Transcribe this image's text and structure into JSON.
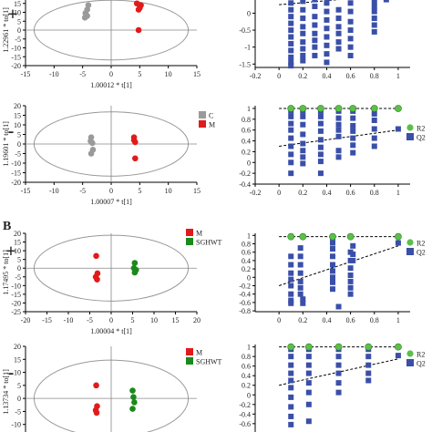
{
  "section_label_b": "B",
  "chart_data": [
    {
      "id": "A-pos-pca",
      "type": "scatter",
      "sign": "+",
      "xlabel": "1.00012 * t[1]",
      "ylabel": "1.22961 * to[1]",
      "xlim": [
        -15,
        15
      ],
      "ylim": [
        -20,
        20
      ],
      "xticks": [
        "-15",
        "-10",
        "-5",
        "0",
        "5",
        "10",
        "15"
      ],
      "yticks": [
        "-20",
        "-15",
        "-10",
        "-5",
        "0",
        "5",
        "10",
        "15",
        "20"
      ],
      "legend": [],
      "series": [
        {
          "color": "#9a9a9a",
          "points": [
            [
              -4,
              14
            ],
            [
              -4.2,
              11.5
            ],
            [
              -4.5,
              9.5
            ],
            [
              -4.2,
              8
            ],
            [
              -4.6,
              7
            ]
          ]
        },
        {
          "color": "#e11b1b",
          "points": [
            [
              4.5,
              15
            ],
            [
              5.2,
              14
            ],
            [
              5,
              12.5
            ],
            [
              4.8,
              11.5
            ],
            [
              4.8,
              0
            ]
          ]
        }
      ]
    },
    {
      "id": "A-pos-perm",
      "type": "scatter",
      "yticks": [
        "0.5",
        "0",
        "-0.5",
        "-1",
        "-1.5"
      ],
      "ylim": [
        -1.6,
        0.55
      ],
      "xlim": [
        -0.2,
        1.1
      ],
      "xticks": [
        "-0.2",
        "0",
        "0.2",
        "0.4",
        "0.6",
        "0.8",
        "1"
      ],
      "r2_points": [],
      "q2_points": [
        [
          0.5,
          0.5
        ],
        [
          0.42,
          0.45
        ],
        [
          0.1,
          0.3
        ],
        [
          0.1,
          0.1
        ],
        [
          0.1,
          -0.1
        ],
        [
          0.1,
          -0.3
        ],
        [
          0.1,
          -0.5
        ],
        [
          0.1,
          -0.7
        ],
        [
          0.1,
          -0.9
        ],
        [
          0.1,
          -1.1
        ],
        [
          0.1,
          -1.3
        ],
        [
          0.1,
          -1.45
        ],
        [
          0.1,
          -1.55
        ],
        [
          0.2,
          0.35
        ],
        [
          0.2,
          0.1
        ],
        [
          0.2,
          -0.15
        ],
        [
          0.2,
          -0.4
        ],
        [
          0.2,
          -0.6
        ],
        [
          0.2,
          -0.85
        ],
        [
          0.2,
          -1.05
        ],
        [
          0.2,
          -1.25
        ],
        [
          0.2,
          -1.4
        ],
        [
          0.3,
          0.4
        ],
        [
          0.3,
          0.2
        ],
        [
          0.3,
          -0.1
        ],
        [
          0.3,
          -0.35
        ],
        [
          0.3,
          -0.6
        ],
        [
          0.3,
          -0.8
        ],
        [
          0.3,
          -1
        ],
        [
          0.3,
          -1.25
        ],
        [
          0.4,
          0.5
        ],
        [
          0.4,
          0.3
        ],
        [
          0.4,
          0.05
        ],
        [
          0.4,
          -0.2
        ],
        [
          0.4,
          -0.45
        ],
        [
          0.4,
          -0.7
        ],
        [
          0.4,
          -0.95
        ],
        [
          0.4,
          -1.2
        ],
        [
          0.4,
          -1.45
        ],
        [
          0.5,
          0.1
        ],
        [
          0.5,
          -0.15
        ],
        [
          0.5,
          -0.4
        ],
        [
          0.5,
          -0.6
        ],
        [
          0.5,
          -0.85
        ],
        [
          0.5,
          -1.05
        ],
        [
          0.6,
          0.3
        ],
        [
          0.6,
          0.05
        ],
        [
          0.6,
          -0.25
        ],
        [
          0.6,
          -0.5
        ],
        [
          0.6,
          -0.75
        ],
        [
          0.6,
          -1
        ],
        [
          0.6,
          -1.25
        ],
        [
          0.8,
          0.35
        ],
        [
          0.8,
          0.2
        ],
        [
          0.8,
          0.05
        ],
        [
          0.8,
          -0.15
        ],
        [
          0.8,
          -0.35
        ],
        [
          0.8,
          -0.55
        ],
        [
          0.9,
          0.4
        ]
      ],
      "q2_reg": [
        [
          0,
          0.25
        ],
        [
          1,
          0.55
        ]
      ]
    },
    {
      "id": "A-neg-pca",
      "type": "scatter",
      "sign": "-",
      "xlabel": "1.00007 * t[1]",
      "ylabel": "1.19601 * to[1]",
      "xlim": [
        -15,
        15
      ],
      "ylim": [
        -20,
        20
      ],
      "xticks": [
        "-15",
        "-10",
        "-5",
        "0",
        "5",
        "10",
        "15"
      ],
      "yticks": [
        "-20",
        "-15",
        "-10",
        "-5",
        "0",
        "5",
        "10",
        "15",
        "20"
      ],
      "legend": [
        {
          "label": "C",
          "color": "#9a9a9a"
        },
        {
          "label": "M",
          "color": "#e11b1b"
        }
      ],
      "series": [
        {
          "color": "#9a9a9a",
          "points": [
            [
              -3.5,
              3.5
            ],
            [
              -3.6,
              1.5
            ],
            [
              -3.3,
              0.5
            ],
            [
              -3.2,
              -3
            ],
            [
              -3.5,
              -5
            ]
          ]
        },
        {
          "color": "#e11b1b",
          "points": [
            [
              4,
              3.5
            ],
            [
              4,
              2
            ],
            [
              4.2,
              1
            ],
            [
              4.2,
              -7.5
            ]
          ]
        }
      ]
    },
    {
      "id": "A-neg-perm",
      "type": "scatter",
      "xlim": [
        -0.2,
        1.1
      ],
      "ylim": [
        -0.4,
        1.05
      ],
      "xticks": [
        "-0.2",
        "0",
        "0.2",
        "0.4",
        "0.6",
        "0.8",
        "1"
      ],
      "yticks": [
        "1",
        "0.8",
        "0.6",
        "0.4",
        "0.2",
        "0",
        "-0.2",
        "-0.4"
      ],
      "legend": [
        {
          "label": "R2",
          "color": "#5cbf4a",
          "shape": "circle"
        },
        {
          "label": "Q2",
          "color": "#3a4fa8",
          "shape": "square"
        }
      ],
      "r2_points": [
        [
          0.1,
          1
        ],
        [
          0.2,
          1
        ],
        [
          0.35,
          1
        ],
        [
          0.5,
          1
        ],
        [
          0.62,
          1
        ],
        [
          0.8,
          1
        ],
        [
          1,
          1
        ]
      ],
      "r2_reg": [
        [
          0,
          1
        ],
        [
          1,
          1
        ]
      ],
      "q2_points": [
        [
          0.1,
          0.95
        ],
        [
          0.1,
          0.85
        ],
        [
          0.1,
          0.72
        ],
        [
          0.1,
          0.6
        ],
        [
          0.1,
          0.45
        ],
        [
          0.1,
          0.3
        ],
        [
          0.1,
          0.15
        ],
        [
          0.1,
          0.0
        ],
        [
          0.1,
          -0.2
        ],
        [
          0.2,
          0.95
        ],
        [
          0.2,
          0.85
        ],
        [
          0.2,
          0.7
        ],
        [
          0.2,
          0.52
        ],
        [
          0.2,
          0.35
        ],
        [
          0.2,
          0.22
        ],
        [
          0.2,
          0.1
        ],
        [
          0.2,
          -0.02
        ],
        [
          0.35,
          0.95
        ],
        [
          0.35,
          0.85
        ],
        [
          0.35,
          0.72
        ],
        [
          0.35,
          0.58
        ],
        [
          0.35,
          0.42
        ],
        [
          0.35,
          0.28
        ],
        [
          0.35,
          0.15
        ],
        [
          0.35,
          0.02
        ],
        [
          0.35,
          -0.2
        ],
        [
          0.5,
          0.95
        ],
        [
          0.5,
          0.82
        ],
        [
          0.5,
          0.7
        ],
        [
          0.5,
          0.6
        ],
        [
          0.5,
          0.48
        ],
        [
          0.5,
          0.22
        ],
        [
          0.5,
          0.1
        ],
        [
          0.62,
          0.95
        ],
        [
          0.62,
          0.82
        ],
        [
          0.62,
          0.68
        ],
        [
          0.62,
          0.58
        ],
        [
          0.62,
          0.45
        ],
        [
          0.62,
          0.32
        ],
        [
          0.62,
          0.18
        ],
        [
          0.8,
          0.9
        ],
        [
          0.8,
          0.78
        ],
        [
          0.8,
          0.62
        ],
        [
          0.8,
          0.45
        ],
        [
          0.8,
          0.3
        ],
        [
          1,
          0.62
        ]
      ],
      "q2_reg": [
        [
          0,
          0.3
        ],
        [
          1,
          0.6
        ]
      ]
    },
    {
      "id": "B-pos-pca",
      "type": "scatter",
      "sign": "+",
      "xlabel": "1.00004 * t[1]",
      "ylabel": "1.17495 * to[1]",
      "xlim": [
        -20,
        20
      ],
      "ylim": [
        -25,
        20
      ],
      "xticks": [
        "-20",
        "-15",
        "-10",
        "-5",
        "0",
        "5",
        "10",
        "15",
        "20"
      ],
      "yticks": [
        "20",
        "15",
        "10",
        "5",
        "0",
        "-5",
        "-10",
        "-15",
        "-20",
        "-25"
      ],
      "legend": [
        {
          "label": "M",
          "color": "#e11b1b"
        },
        {
          "label": "SGHWT",
          "color": "#1a8a1a"
        }
      ],
      "series": [
        {
          "color": "#e11b1b",
          "points": [
            [
              -3.5,
              7
            ],
            [
              -3.2,
              -3
            ],
            [
              -3.6,
              -5
            ],
            [
              -3.3,
              -6.5
            ]
          ]
        },
        {
          "color": "#1a8a1a",
          "points": [
            [
              5.5,
              3
            ],
            [
              5.3,
              0
            ],
            [
              5.8,
              -1
            ],
            [
              5.5,
              -2.5
            ]
          ]
        }
      ]
    },
    {
      "id": "B-pos-perm",
      "type": "scatter",
      "xlim": [
        -0.2,
        1.1
      ],
      "ylim": [
        -0.82,
        1.05
      ],
      "xticks": [
        "0",
        "0.2",
        "0.4",
        "0.6",
        "0.8",
        "1"
      ],
      "yticks": [
        "1",
        "0.8",
        "0.6",
        "0.4",
        "0.2",
        "0",
        "-0.2",
        "-0.4",
        "-0.6",
        "-0.8"
      ],
      "legend": [
        {
          "label": "R2",
          "color": "#5cbf4a",
          "shape": "circle"
        },
        {
          "label": "Q2",
          "color": "#3a4fa8",
          "shape": "square"
        }
      ],
      "r2_points": [
        [
          0.1,
          0.97
        ],
        [
          0.2,
          0.97
        ],
        [
          0.45,
          0.97
        ],
        [
          0.6,
          0.97
        ],
        [
          1,
          0.97
        ]
      ],
      "r2_reg": [
        [
          0,
          0.97
        ],
        [
          1,
          0.97
        ]
      ],
      "q2_points": [
        [
          0.1,
          0.5
        ],
        [
          0.1,
          0.3
        ],
        [
          0.1,
          0.1
        ],
        [
          0.1,
          -0.05
        ],
        [
          0.1,
          -0.2
        ],
        [
          0.1,
          -0.4
        ],
        [
          0.1,
          -0.55
        ],
        [
          0.1,
          -0.62
        ],
        [
          0.18,
          0.7
        ],
        [
          0.18,
          0.5
        ],
        [
          0.18,
          0.3
        ],
        [
          0.18,
          0.1
        ],
        [
          0.18,
          -0.1
        ],
        [
          0.18,
          -0.25
        ],
        [
          0.18,
          -0.4
        ],
        [
          0.2,
          -0.52
        ],
        [
          0.2,
          -0.62
        ],
        [
          0.45,
          0.95
        ],
        [
          0.45,
          0.82
        ],
        [
          0.45,
          0.68
        ],
        [
          0.45,
          0.5
        ],
        [
          0.45,
          0.3
        ],
        [
          0.45,
          0.15
        ],
        [
          0.45,
          0.0
        ],
        [
          0.45,
          -0.12
        ],
        [
          0.45,
          -0.28
        ],
        [
          0.6,
          0.6
        ],
        [
          0.6,
          0.4
        ],
        [
          0.6,
          0.22
        ],
        [
          0.6,
          0.05
        ],
        [
          0.6,
          -0.1
        ],
        [
          0.6,
          -0.25
        ],
        [
          0.6,
          -0.4
        ],
        [
          0.62,
          0.75
        ],
        [
          0.62,
          0.55
        ],
        [
          0.62,
          0.4
        ],
        [
          0.5,
          -0.7
        ],
        [
          1,
          0.82
        ]
      ],
      "q2_reg": [
        [
          0,
          -0.2
        ],
        [
          1,
          0.75
        ]
      ]
    },
    {
      "id": "B-neg-pca",
      "type": "scatter",
      "sign": "-",
      "xlabel": "",
      "ylabel": "1.13734 * to[1]",
      "xlim": [
        -20,
        20
      ],
      "ylim": [
        -15,
        20
      ],
      "xticks": [],
      "yticks": [
        "20",
        "15",
        "10",
        "5",
        "0",
        "-5",
        "-10",
        "-15"
      ],
      "legend": [
        {
          "label": "M",
          "color": "#e11b1b"
        },
        {
          "label": "SGHWT",
          "color": "#1a8a1a"
        }
      ],
      "series": [
        {
          "color": "#e11b1b",
          "points": [
            [
              -3.5,
              5
            ],
            [
              -3.3,
              -3
            ],
            [
              -3.6,
              -4.5
            ],
            [
              -3.4,
              -5.5
            ]
          ]
        },
        {
          "color": "#1a8a1a",
          "points": [
            [
              5,
              3
            ],
            [
              5.2,
              0.5
            ],
            [
              5.4,
              -1.5
            ],
            [
              5,
              -4
            ]
          ]
        }
      ]
    },
    {
      "id": "B-neg-perm",
      "type": "scatter",
      "xlim": [
        -0.2,
        1.1
      ],
      "ylim": [
        -0.85,
        1.05
      ],
      "xticks": [],
      "yticks": [
        "1",
        "0.8",
        "0.6",
        "0.4",
        "0.2",
        "0",
        "-0.2",
        "-0.4",
        "-0.6"
      ],
      "legend": [
        {
          "label": "R2",
          "color": "#5cbf4a",
          "shape": "circle"
        },
        {
          "label": "Q2",
          "color": "#3a4fa8",
          "shape": "square"
        }
      ],
      "r2_points": [
        [
          0.1,
          1
        ],
        [
          0.25,
          1
        ],
        [
          0.5,
          1
        ],
        [
          0.75,
          1
        ],
        [
          1,
          1
        ]
      ],
      "r2_reg": [
        [
          0,
          1
        ],
        [
          1,
          1
        ]
      ],
      "q2_points": [
        [
          0.1,
          0.95
        ],
        [
          0.1,
          0.8
        ],
        [
          0.1,
          0.62
        ],
        [
          0.1,
          0.45
        ],
        [
          0.1,
          0.3
        ],
        [
          0.1,
          0.15
        ],
        [
          0.1,
          -0.05
        ],
        [
          0.1,
          -0.25
        ],
        [
          0.1,
          -0.45
        ],
        [
          0.1,
          -0.62
        ],
        [
          0.25,
          0.95
        ],
        [
          0.25,
          0.8
        ],
        [
          0.25,
          0.62
        ],
        [
          0.25,
          0.45
        ],
        [
          0.25,
          0.25
        ],
        [
          0.25,
          0.05
        ],
        [
          0.25,
          -0.2
        ],
        [
          0.25,
          -0.55
        ],
        [
          0.5,
          0.95
        ],
        [
          0.5,
          0.8
        ],
        [
          0.5,
          0.62
        ],
        [
          0.5,
          0.45
        ],
        [
          0.5,
          0.25
        ],
        [
          0.5,
          0.05
        ],
        [
          0.75,
          0.95
        ],
        [
          0.75,
          0.8
        ],
        [
          0.75,
          0.62
        ],
        [
          0.75,
          0.45
        ],
        [
          0.75,
          0.3
        ],
        [
          1,
          0.82
        ]
      ],
      "q2_reg": [
        [
          0,
          0.2
        ],
        [
          1,
          0.75
        ]
      ]
    }
  ]
}
